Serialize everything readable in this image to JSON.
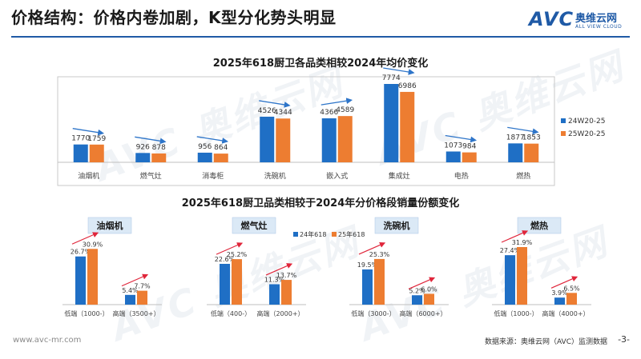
{
  "page": {
    "title": "价格结构：价格内卷加剧，K型分化势头明显",
    "logo": {
      "avc": "AVC",
      "cn": "奥维云网",
      "en": "ALL VIEW CLOUD"
    },
    "footer_url": "www.avc-mr.com",
    "footer_source": "数据来源：奥维云网（AVC）监测数据",
    "page_number": "-3-",
    "watermark": "AVC 奥维云网"
  },
  "colors": {
    "blue": "#1f6fc5",
    "orange": "#ed7d31",
    "arrow": "#e0263b",
    "accent": "#1f5aa6"
  },
  "chart_data": [
    {
      "type": "bar",
      "title": "2025年618厨卫各品类相较2024年均价变化",
      "categories": [
        "油烟机",
        "燃气灶",
        "消毒柜",
        "洗碗机",
        "嵌入式",
        "集成灶",
        "电热",
        "燃热"
      ],
      "series": [
        {
          "name": "24W20-25",
          "color": "#1f6fc5",
          "values": [
            1770,
            926,
            956,
            4526,
            4366,
            7774,
            1073,
            1877
          ]
        },
        {
          "name": "25W20-25",
          "color": "#ed7d31",
          "values": [
            1759,
            878,
            864,
            4344,
            4589,
            6986,
            984,
            1853
          ]
        }
      ],
      "ylim": [
        0,
        8800
      ],
      "legend": "right",
      "arrows": [
        "down",
        "down",
        "down",
        "down",
        "up",
        "down",
        "down",
        "down"
      ]
    },
    {
      "type": "bar",
      "title": "2025年618厨卫品类相较于2024年分价格段销量份额变化",
      "legend": [
        "24年618",
        "25年618"
      ],
      "ylim": [
        0,
        36
      ],
      "panels": [
        {
          "name": "油烟机",
          "categories": [
            "低端（1000-）",
            "高端（3500+）"
          ],
          "series": [
            {
              "name": "24年618",
              "values": [
                26.7,
                5.4
              ],
              "labels": [
                "26.7%",
                "5.4%"
              ]
            },
            {
              "name": "25年618",
              "values": [
                30.9,
                7.7
              ],
              "labels": [
                "30.9%",
                "7.7%"
              ]
            }
          ]
        },
        {
          "name": "燃气灶",
          "categories": [
            "低端（400-）",
            "高端（2000+）"
          ],
          "series": [
            {
              "name": "24年618",
              "values": [
                22.6,
                11.3
              ],
              "labels": [
                "22.6%",
                "11.3%"
              ]
            },
            {
              "name": "25年618",
              "values": [
                25.2,
                13.7
              ],
              "labels": [
                "25.2%",
                "13.7%"
              ]
            }
          ]
        },
        {
          "name": "洗碗机",
          "categories": [
            "低端（3000-）",
            "高端（6000+）"
          ],
          "series": [
            {
              "name": "24年618",
              "values": [
                19.5,
                5.2
              ],
              "labels": [
                "19.5%",
                "5.2%"
              ]
            },
            {
              "name": "25年618",
              "values": [
                25.3,
                6.0
              ],
              "labels": [
                "25.3%",
                "6.0%"
              ]
            }
          ]
        },
        {
          "name": "燃热",
          "categories": [
            "低端（1000-）",
            "高端（4000+）"
          ],
          "series": [
            {
              "name": "24年618",
              "values": [
                27.4,
                3.9
              ],
              "labels": [
                "27.4%",
                "3.9%"
              ]
            },
            {
              "name": "25年618",
              "values": [
                31.9,
                6.5
              ],
              "labels": [
                "31.9%",
                "6.5%"
              ]
            }
          ]
        }
      ]
    }
  ]
}
